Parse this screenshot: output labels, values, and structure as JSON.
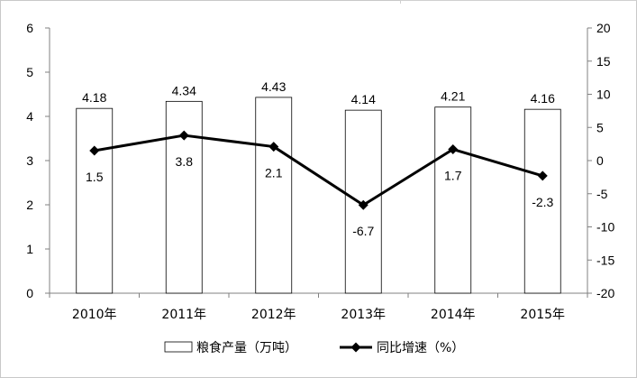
{
  "chart_data": {
    "type": "bar+line",
    "categories": [
      "2010年",
      "2011年",
      "2012年",
      "2013年",
      "2014年",
      "2015年"
    ],
    "series": [
      {
        "name": "粮食产量（万吨）",
        "type": "bar",
        "axis": "left",
        "values": [
          4.18,
          4.34,
          4.43,
          4.14,
          4.21,
          4.16
        ],
        "labels": [
          "4.18",
          "4.34",
          "4.43",
          "4.14",
          "4.21",
          "4.16"
        ]
      },
      {
        "name": "同比增速（%）",
        "type": "line",
        "axis": "right",
        "values": [
          1.5,
          3.8,
          2.1,
          -6.7,
          1.7,
          -2.3
        ],
        "labels": [
          "1.5",
          "3.8",
          "2.1",
          "-6.7",
          "1.7",
          "-2.3"
        ]
      }
    ],
    "y_left": {
      "min": 0,
      "max": 6,
      "ticks": [
        "0",
        "1",
        "2",
        "3",
        "4",
        "5",
        "6"
      ]
    },
    "y_right": {
      "min": -20,
      "max": 20,
      "ticks": [
        "-20",
        "-15",
        "-10",
        "-5",
        "0",
        "5",
        "10",
        "15",
        "20"
      ]
    },
    "grid": false,
    "legend_position": "bottom",
    "title": "",
    "xlabel": "",
    "ylabel": ""
  }
}
